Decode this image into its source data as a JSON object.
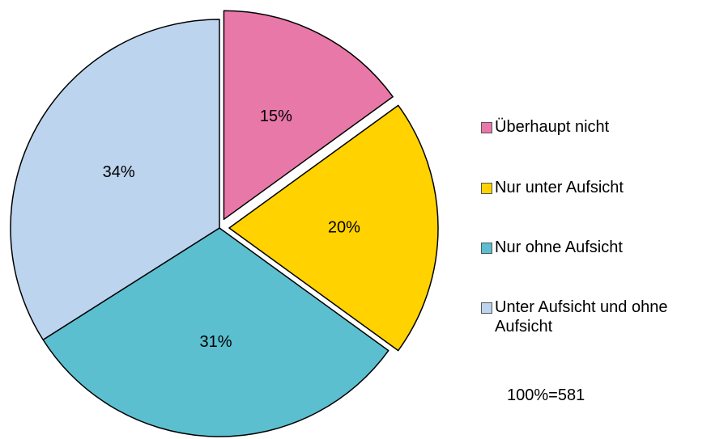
{
  "chart_data": {
    "type": "pie",
    "categories": [
      "Überhaupt nicht",
      "Nur unter Aufsicht",
      "Nur ohne Aufsicht",
      "Unter Aufsicht und ohne Aufsicht"
    ],
    "values": [
      15,
      20,
      31,
      34
    ],
    "value_labels": [
      "15%",
      "20%",
      "31%",
      "34%"
    ],
    "colors": [
      "#e878a8",
      "#ffd200",
      "#5bbfcf",
      "#bdd4ee"
    ],
    "exploded": [
      true,
      true,
      false,
      false
    ],
    "legend": "right",
    "annotation": "100%=581"
  }
}
